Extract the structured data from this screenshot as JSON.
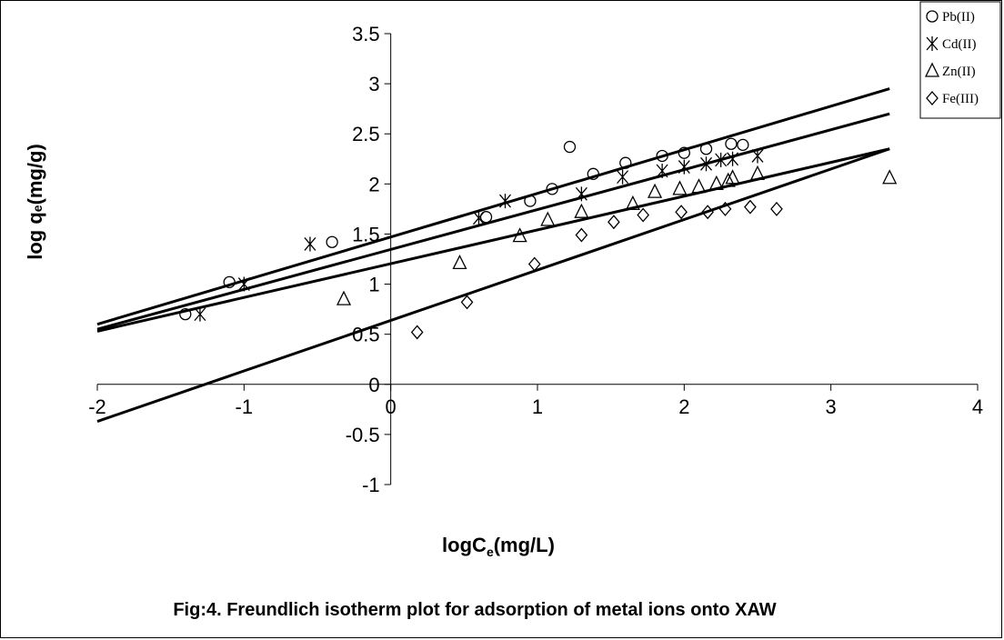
{
  "chart_data": {
    "type": "scatter",
    "caption": "Fig:4. Freundlich isotherm plot for adsorption of metal ions onto XAW",
    "xlabel_main": "logC",
    "xlabel_sub": "e",
    "xlabel_unit": "(mg/L)",
    "ylabel_main": "log q",
    "ylabel_sub": "e",
    "ylabel_unit": "(mg/g)",
    "xlim": [
      -2,
      4
    ],
    "ylim": [
      -1,
      3.5
    ],
    "x_ticks": [
      -2,
      -1,
      0,
      1,
      2,
      3,
      4
    ],
    "x_tick_labels": [
      "-2",
      "-1",
      "0",
      "1",
      "2",
      "3",
      "4"
    ],
    "y_ticks": [
      -1,
      -0.5,
      0,
      0.5,
      1,
      1.5,
      2,
      2.5,
      3,
      3.5
    ],
    "y_tick_labels": [
      "-1",
      "-0.5",
      "0",
      "0.5",
      "1",
      "1.5",
      "2",
      "2.5",
      "3",
      "3.5"
    ],
    "grid": false,
    "legend_position": "top-right",
    "series": [
      {
        "name": "Pb(II)",
        "marker": "circle",
        "points": [
          [
            -1.4,
            0.7
          ],
          [
            -1.1,
            1.02
          ],
          [
            -0.4,
            1.42
          ],
          [
            0.65,
            1.67
          ],
          [
            0.95,
            1.83
          ],
          [
            1.1,
            1.95
          ],
          [
            1.22,
            2.37
          ],
          [
            1.38,
            2.1
          ],
          [
            1.6,
            2.21
          ],
          [
            1.85,
            2.28
          ],
          [
            2.0,
            2.31
          ],
          [
            2.15,
            2.35
          ],
          [
            2.32,
            2.4
          ],
          [
            2.4,
            2.39
          ]
        ],
        "fit": [
          [
            -2.0,
            0.6
          ],
          [
            3.4,
            2.95
          ]
        ]
      },
      {
        "name": "Cd(II)",
        "marker": "asterisk",
        "points": [
          [
            -1.3,
            0.7
          ],
          [
            -1.0,
            1.0
          ],
          [
            -0.55,
            1.4
          ],
          [
            0.6,
            1.66
          ],
          [
            0.78,
            1.83
          ],
          [
            1.3,
            1.9
          ],
          [
            1.58,
            2.07
          ],
          [
            1.85,
            2.13
          ],
          [
            2.0,
            2.17
          ],
          [
            2.15,
            2.2
          ],
          [
            2.25,
            2.24
          ],
          [
            2.33,
            2.25
          ],
          [
            2.5,
            2.28
          ]
        ],
        "fit": [
          [
            -2.0,
            0.55
          ],
          [
            3.4,
            2.7
          ]
        ]
      },
      {
        "name": "Zn(II)",
        "marker": "triangle",
        "points": [
          [
            -0.32,
            0.85
          ],
          [
            0.47,
            1.21
          ],
          [
            0.88,
            1.48
          ],
          [
            1.07,
            1.64
          ],
          [
            1.3,
            1.72
          ],
          [
            1.65,
            1.8
          ],
          [
            1.8,
            1.92
          ],
          [
            1.97,
            1.95
          ],
          [
            2.1,
            1.97
          ],
          [
            2.22,
            2.0
          ],
          [
            2.3,
            2.03
          ],
          [
            2.33,
            2.06
          ],
          [
            2.5,
            2.1
          ],
          [
            3.4,
            2.06
          ]
        ],
        "fit": [
          [
            -2.0,
            0.53
          ],
          [
            3.4,
            2.35
          ]
        ]
      },
      {
        "name": "Fe(III)",
        "marker": "diamond",
        "points": [
          [
            0.18,
            0.52
          ],
          [
            0.52,
            0.82
          ],
          [
            0.98,
            1.2
          ],
          [
            1.3,
            1.49
          ],
          [
            1.52,
            1.62
          ],
          [
            1.72,
            1.69
          ],
          [
            1.98,
            1.72
          ],
          [
            2.16,
            1.72
          ],
          [
            2.28,
            1.75
          ],
          [
            2.45,
            1.77
          ],
          [
            2.63,
            1.75
          ]
        ],
        "fit": [
          [
            -2.0,
            -0.37
          ],
          [
            3.4,
            2.35
          ]
        ]
      }
    ]
  }
}
